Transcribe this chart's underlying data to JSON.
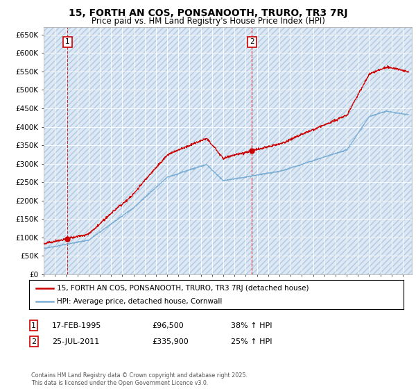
{
  "title": "15, FORTH AN COS, PONSANOOTH, TRURO, TR3 7RJ",
  "subtitle": "Price paid vs. HM Land Registry's House Price Index (HPI)",
  "ylim": [
    0,
    670000
  ],
  "yticks": [
    0,
    50000,
    100000,
    150000,
    200000,
    250000,
    300000,
    350000,
    400000,
    450000,
    500000,
    550000,
    600000,
    650000
  ],
  "ytick_labels": [
    "£0",
    "£50K",
    "£100K",
    "£150K",
    "£200K",
    "£250K",
    "£300K",
    "£350K",
    "£400K",
    "£450K",
    "£500K",
    "£550K",
    "£600K",
    "£650K"
  ],
  "sale1_date": 1995.12,
  "sale1_price": 96500,
  "sale1_label": "1",
  "sale2_date": 2011.56,
  "sale2_price": 335900,
  "sale2_label": "2",
  "red_line_color": "#cc0000",
  "blue_line_color": "#7aadd4",
  "marker_box_color": "#cc0000",
  "plot_bg_color": "#dce9f5",
  "legend_line1": "15, FORTH AN COS, PONSANOOTH, TRURO, TR3 7RJ (detached house)",
  "legend_line2": "HPI: Average price, detached house, Cornwall",
  "table_row1_num": "1",
  "table_row1_date": "17-FEB-1995",
  "table_row1_price": "£96,500",
  "table_row1_hpi": "38% ↑ HPI",
  "table_row2_num": "2",
  "table_row2_date": "25-JUL-2011",
  "table_row2_price": "£335,900",
  "table_row2_hpi": "25% ↑ HPI",
  "footer": "Contains HM Land Registry data © Crown copyright and database right 2025.\nThis data is licensed under the Open Government Licence v3.0.",
  "background_color": "#ffffff",
  "grid_color": "#ffffff",
  "title_fontsize": 10,
  "subtitle_fontsize": 8.5,
  "axis_fontsize": 7.5
}
